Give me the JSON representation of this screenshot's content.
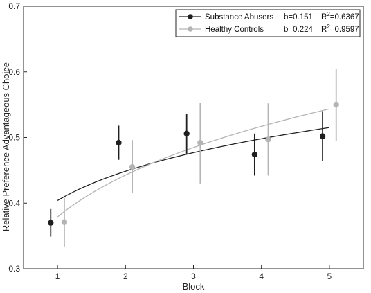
{
  "chart_data": {
    "type": "scatter",
    "title": "",
    "xlabel": "Block",
    "ylabel": "Relative Preference Advantageous Choice",
    "xlim": [
      0.5,
      5.5
    ],
    "ylim": [
      0.3,
      0.7
    ],
    "x_ticks": [
      "1",
      "2",
      "3",
      "4",
      "5"
    ],
    "y_ticks": [
      "0.3",
      "0.4",
      "0.5",
      "0.6",
      "0.7"
    ],
    "grid": false,
    "legend_position": "top-right",
    "series": [
      {
        "name": "Substance Abusers",
        "fit_label": "b=0.151",
        "r2_label": "0.6367",
        "color": "#1f1f1f",
        "fit_type": "power",
        "fit_b": 0.151,
        "fit_a": 0.404,
        "x": [
          0.9,
          1.9,
          2.9,
          3.9,
          4.9
        ],
        "y": [
          0.37,
          0.492,
          0.506,
          0.474,
          0.502
        ],
        "err_low": [
          0.349,
          0.466,
          0.475,
          0.442,
          0.464
        ],
        "err_high": [
          0.391,
          0.518,
          0.536,
          0.506,
          0.54
        ]
      },
      {
        "name": "Healthy Controls",
        "fit_label": "b=0.224",
        "r2_label": "0.9597",
        "color": "#b4b4b4",
        "fit_type": "power",
        "fit_b": 0.224,
        "fit_a": 0.379,
        "x": [
          1.1,
          2.1,
          3.1,
          4.1,
          5.1
        ],
        "y": [
          0.371,
          0.455,
          0.492,
          0.497,
          0.55
        ],
        "err_low": [
          0.334,
          0.415,
          0.43,
          0.442,
          0.495
        ],
        "err_high": [
          0.408,
          0.496,
          0.553,
          0.552,
          0.605
        ]
      }
    ]
  }
}
